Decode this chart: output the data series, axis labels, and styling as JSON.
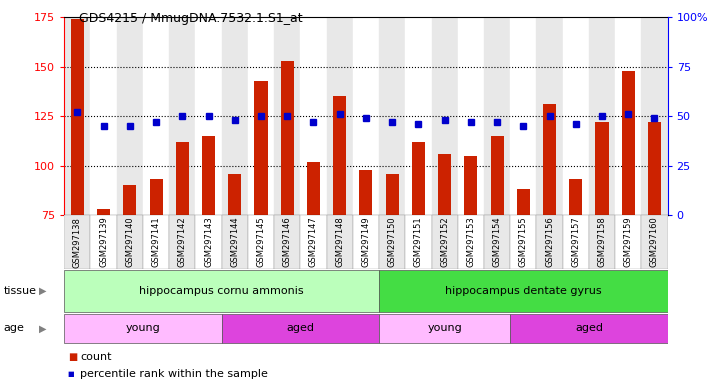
{
  "title": "GDS4215 / MmugDNA.7532.1.S1_at",
  "samples": [
    "GSM297138",
    "GSM297139",
    "GSM297140",
    "GSM297141",
    "GSM297142",
    "GSM297143",
    "GSM297144",
    "GSM297145",
    "GSM297146",
    "GSM297147",
    "GSM297148",
    "GSM297149",
    "GSM297150",
    "GSM297151",
    "GSM297152",
    "GSM297153",
    "GSM297154",
    "GSM297155",
    "GSM297156",
    "GSM297157",
    "GSM297158",
    "GSM297159",
    "GSM297160"
  ],
  "counts": [
    174,
    78,
    90,
    93,
    112,
    115,
    96,
    143,
    153,
    102,
    135,
    98,
    96,
    112,
    106,
    105,
    115,
    88,
    131,
    93,
    122,
    148,
    122
  ],
  "percentiles": [
    52,
    45,
    45,
    47,
    50,
    50,
    48,
    50,
    50,
    47,
    51,
    49,
    47,
    46,
    48,
    47,
    47,
    45,
    50,
    46,
    50,
    51,
    49
  ],
  "ylim_left": [
    75,
    175
  ],
  "ylim_right": [
    0,
    100
  ],
  "yticks_left": [
    75,
    100,
    125,
    150,
    175
  ],
  "yticks_right": [
    0,
    25,
    50,
    75,
    100
  ],
  "bar_color": "#cc2200",
  "dot_color": "#0000cc",
  "tissue_groups": [
    {
      "label": "hippocampus cornu ammonis",
      "start": 0,
      "end": 12,
      "color": "#bbffbb"
    },
    {
      "label": "hippocampus dentate gyrus",
      "start": 12,
      "end": 23,
      "color": "#44dd44"
    }
  ],
  "age_groups": [
    {
      "label": "young",
      "start": 0,
      "end": 6,
      "color": "#ffbbff"
    },
    {
      "label": "aged",
      "start": 6,
      "end": 12,
      "color": "#dd44dd"
    },
    {
      "label": "young",
      "start": 12,
      "end": 17,
      "color": "#ffbbff"
    },
    {
      "label": "aged",
      "start": 17,
      "end": 23,
      "color": "#dd44dd"
    }
  ],
  "tissue_label": "tissue",
  "age_label": "age",
  "legend_count": "count",
  "legend_percentile": "percentile rank within the sample",
  "col_bg_odd": "#e8e8e8",
  "col_bg_even": "#ffffff",
  "plot_bg": "#ffffff",
  "grid_color": "#000000",
  "grid_style": "dotted"
}
